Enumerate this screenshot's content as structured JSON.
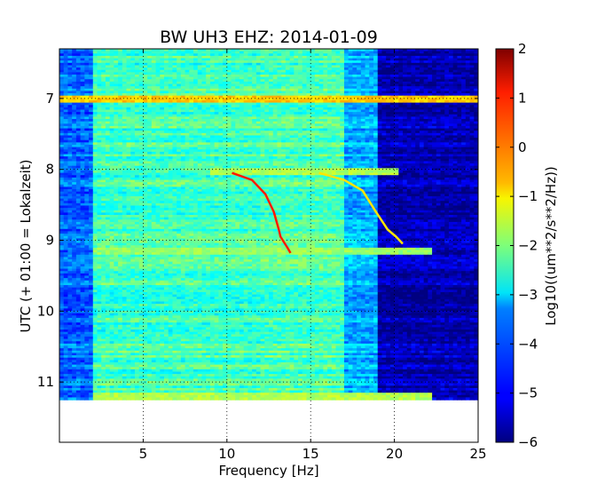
{
  "chart_data": {
    "type": "heatmap",
    "title": "BW UH3 EHZ: 2014-01-09",
    "xlabel": "Frequency [Hz]",
    "ylabel": "UTC (+ 01:00 = Lokalzeit)",
    "xlim": [
      0,
      25
    ],
    "ylim": [
      6.3,
      11.85
    ],
    "data_y_range": [
      6.3,
      11.25
    ],
    "x_ticks": [
      5,
      10,
      15,
      20,
      25
    ],
    "x_tick_labels": [
      "5",
      "10",
      "15",
      "20",
      "25"
    ],
    "y_ticks": [
      7,
      8,
      9,
      10,
      11
    ],
    "y_tick_labels": [
      "7",
      "8",
      "9",
      "10",
      "11"
    ],
    "y_inverted": true,
    "grid": true,
    "colormap": "jet",
    "colorbar": {
      "label": "Log10((um**2/s**2/Hz))",
      "range": [
        -6,
        2
      ],
      "ticks": [
        2,
        1,
        0,
        -1,
        -2,
        -3,
        -4,
        -5,
        -6
      ],
      "tick_labels": [
        "2",
        "1",
        "0",
        "−1",
        "−2",
        "−3",
        "−4",
        "−5",
        "−6"
      ]
    },
    "spectral_bands": [
      {
        "from_hz": 0,
        "to_hz": 2,
        "level": -4.2
      },
      {
        "from_hz": 2,
        "to_hz": 12,
        "level": -2.5
      },
      {
        "from_hz": 12,
        "to_hz": 17,
        "level": -2.4
      },
      {
        "from_hz": 17,
        "to_hz": 19,
        "level": -3.6
      },
      {
        "from_hz": 19,
        "to_hz": 25,
        "level": -5.6
      }
    ],
    "events": [
      {
        "time_utc": 7.0,
        "from_hz": 0,
        "to_hz": 25,
        "level": -0.6
      },
      {
        "time_utc": 8.0,
        "from_hz": 9,
        "to_hz": 20,
        "level": -1.6
      },
      {
        "time_utc": 9.15,
        "from_hz": 2,
        "to_hz": 22,
        "level": -1.8
      },
      {
        "time_utc": 11.2,
        "from_hz": 2,
        "to_hz": 22,
        "level": -1.6
      }
    ],
    "tracks": [
      {
        "level": 0.8,
        "points": [
          [
            10.3,
            8.05
          ],
          [
            11.5,
            8.15
          ],
          [
            12.3,
            8.35
          ],
          [
            12.8,
            8.6
          ],
          [
            13.1,
            8.85
          ],
          [
            13.2,
            8.95
          ],
          [
            13.6,
            9.1
          ],
          [
            13.8,
            9.18
          ]
        ]
      },
      {
        "level": -0.8,
        "points": [
          [
            15.5,
            8.05
          ],
          [
            17.0,
            8.15
          ],
          [
            18.1,
            8.3
          ],
          [
            18.9,
            8.6
          ],
          [
            19.6,
            8.85
          ],
          [
            20.1,
            8.95
          ],
          [
            20.5,
            9.05
          ]
        ]
      }
    ]
  }
}
